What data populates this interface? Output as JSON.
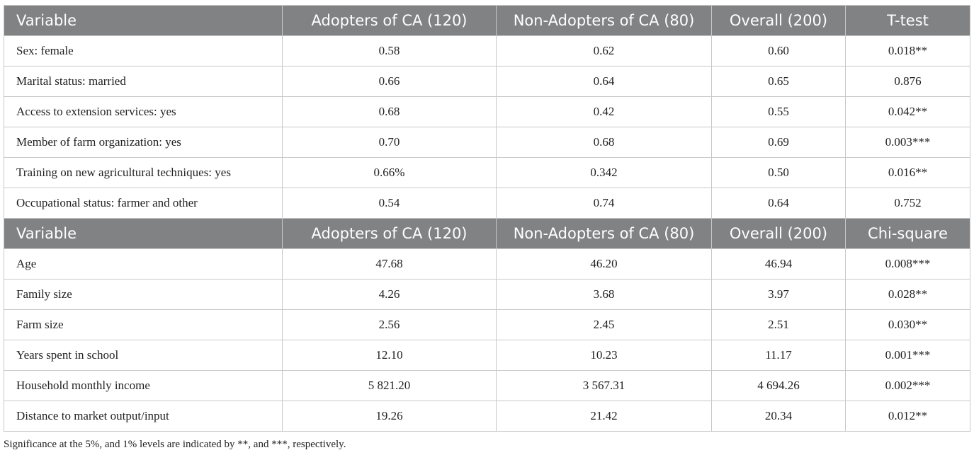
{
  "tables": [
    {
      "header": [
        "Variable",
        "Adopters of CA (120)",
        "Non-Adopters of CA (80)",
        "Overall (200)",
        "T-test"
      ],
      "rows": [
        [
          "Sex: female",
          "0.58",
          "0.62",
          "0.60",
          "0.018**"
        ],
        [
          "Marital status: married",
          "0.66",
          "0.64",
          "0.65",
          "0.876"
        ],
        [
          "Access to extension services: yes",
          "0.68",
          "0.42",
          "0.55",
          "0.042**"
        ],
        [
          "Member of farm organization: yes",
          "0.70",
          "0.68",
          "0.69",
          "0.003***"
        ],
        [
          "Training on new agricultural techniques: yes",
          "0.66%",
          "0.342",
          "0.50",
          "0.016**"
        ],
        [
          "Occupational status: farmer and other",
          "0.54",
          "0.74",
          "0.64",
          "0.752"
        ]
      ]
    },
    {
      "header": [
        "Variable",
        "Adopters of CA (120)",
        "Non-Adopters of CA (80)",
        "Overall (200)",
        "Chi-square"
      ],
      "rows": [
        [
          "Age",
          "47.68",
          "46.20",
          "46.94",
          "0.008***"
        ],
        [
          "Family size",
          "4.26",
          "3.68",
          "3.97",
          "0.028**"
        ],
        [
          "Farm size",
          "2.56",
          "2.45",
          "2.51",
          "0.030**"
        ],
        [
          "Years spent in school",
          "12.10",
          "10.23",
          "11.17",
          "0.001***"
        ],
        [
          "Household monthly income",
          "5 821.20",
          "3 567.31",
          "4 694.26",
          "0.002***"
        ],
        [
          "Distance to market output/input",
          "19.26",
          "21.42",
          "20.34",
          "0.012**"
        ]
      ]
    }
  ],
  "footnote": "Significance at the 5%, and 1% levels are indicated by **, and ***, respectively."
}
